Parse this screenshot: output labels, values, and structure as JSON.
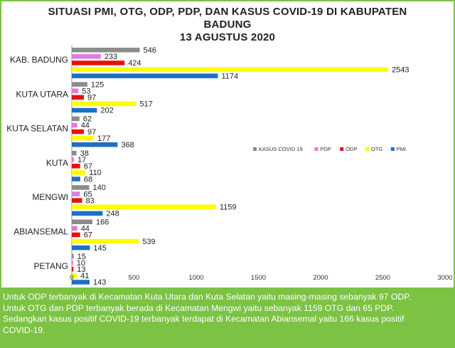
{
  "chart_data": {
    "type": "bar",
    "orientation": "horizontal",
    "title_lines": [
      "SITUASI PMI, OTG, ODP, PDP, DAN KASUS COVID-19 DI KABUPATEN",
      "BADUNG",
      "13 AGUSTUS 2020"
    ],
    "categories": [
      "KAB. BADUNG",
      "KUTA UTARA",
      "KUTA SELATAN",
      "KUTA",
      "MENGWI",
      "ABIANSEMAL",
      "PETANG"
    ],
    "series": [
      {
        "name": "KASUS COVID 19",
        "color": "#8c8c8c",
        "values": [
          546,
          125,
          62,
          38,
          140,
          166,
          15
        ]
      },
      {
        "name": "PDP",
        "color": "#e07ae0",
        "values": [
          233,
          53,
          44,
          17,
          65,
          44,
          10
        ]
      },
      {
        "name": "ODP",
        "color": "#e81010",
        "values": [
          424,
          97,
          97,
          67,
          83,
          67,
          13
        ]
      },
      {
        "name": "OTG",
        "color": "#ffff00",
        "values": [
          2543,
          517,
          177,
          110,
          1159,
          539,
          41
        ]
      },
      {
        "name": "PMI",
        "color": "#1f6fc2",
        "values": [
          1174,
          202,
          368,
          68,
          248,
          145,
          143
        ]
      }
    ],
    "xlim": [
      0,
      3000
    ],
    "xticks": [
      "0",
      "500",
      "1000",
      "1500",
      "2000",
      "2500",
      "3000"
    ],
    "legend_position": "right-middle",
    "grid": false
  },
  "caption": [
    "Untuk ODP terbanyak di Kecamatan Kuta Utara dan Kuta Selatan yaitu masing-masing sebanyak 97 ODP.",
    "Untuk OTG dan PDP terbanyak berada di Kecamatan Mengwi yaitu sebanyak 1159 OTG dan 65 PDP.",
    "Sedangkan  kasus positif COVID-19 terbanyak terdapat di Kecamatan Abiansemal yaitu 166 kasus positif",
    "COVID-19."
  ]
}
